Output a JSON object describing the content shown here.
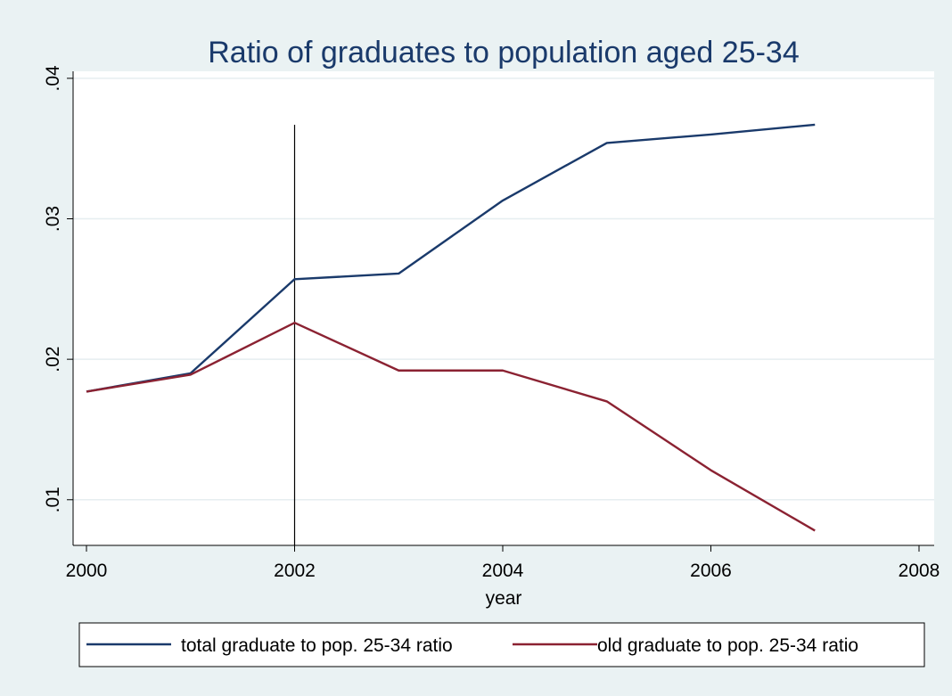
{
  "chart_data": {
    "type": "line",
    "title": "Ratio of graduates to population aged 25-34",
    "xlabel": "year",
    "ylabel": "",
    "xlim": [
      2000,
      2008
    ],
    "ylim": [
      0.00675,
      0.0405
    ],
    "x_ticks": [
      2000,
      2002,
      2004,
      2006,
      2008
    ],
    "x_tick_labels": [
      "2000",
      "2002",
      "2004",
      "2006",
      "2008"
    ],
    "y_ticks": [
      0.01,
      0.02,
      0.03,
      0.04
    ],
    "y_tick_labels": [
      ".01",
      ".02",
      ".03",
      ".04"
    ],
    "grid": true,
    "reference_line_x": 2002,
    "legend_position": "bottom",
    "x": [
      2000,
      2001,
      2002,
      2003,
      2004,
      2005,
      2006,
      2007
    ],
    "series": [
      {
        "name": "total graduate to pop. 25-34 ratio",
        "color": "#1a3a6b",
        "values": [
          0.0177,
          0.019,
          0.0257,
          0.0261,
          0.0313,
          0.0354,
          0.036,
          0.0367
        ]
      },
      {
        "name": "old graduate to pop. 25-34 ratio",
        "color": "#8b2232",
        "values": [
          0.0177,
          0.0189,
          0.0226,
          0.0192,
          0.0192,
          0.017,
          0.0121,
          0.0078
        ]
      }
    ]
  }
}
